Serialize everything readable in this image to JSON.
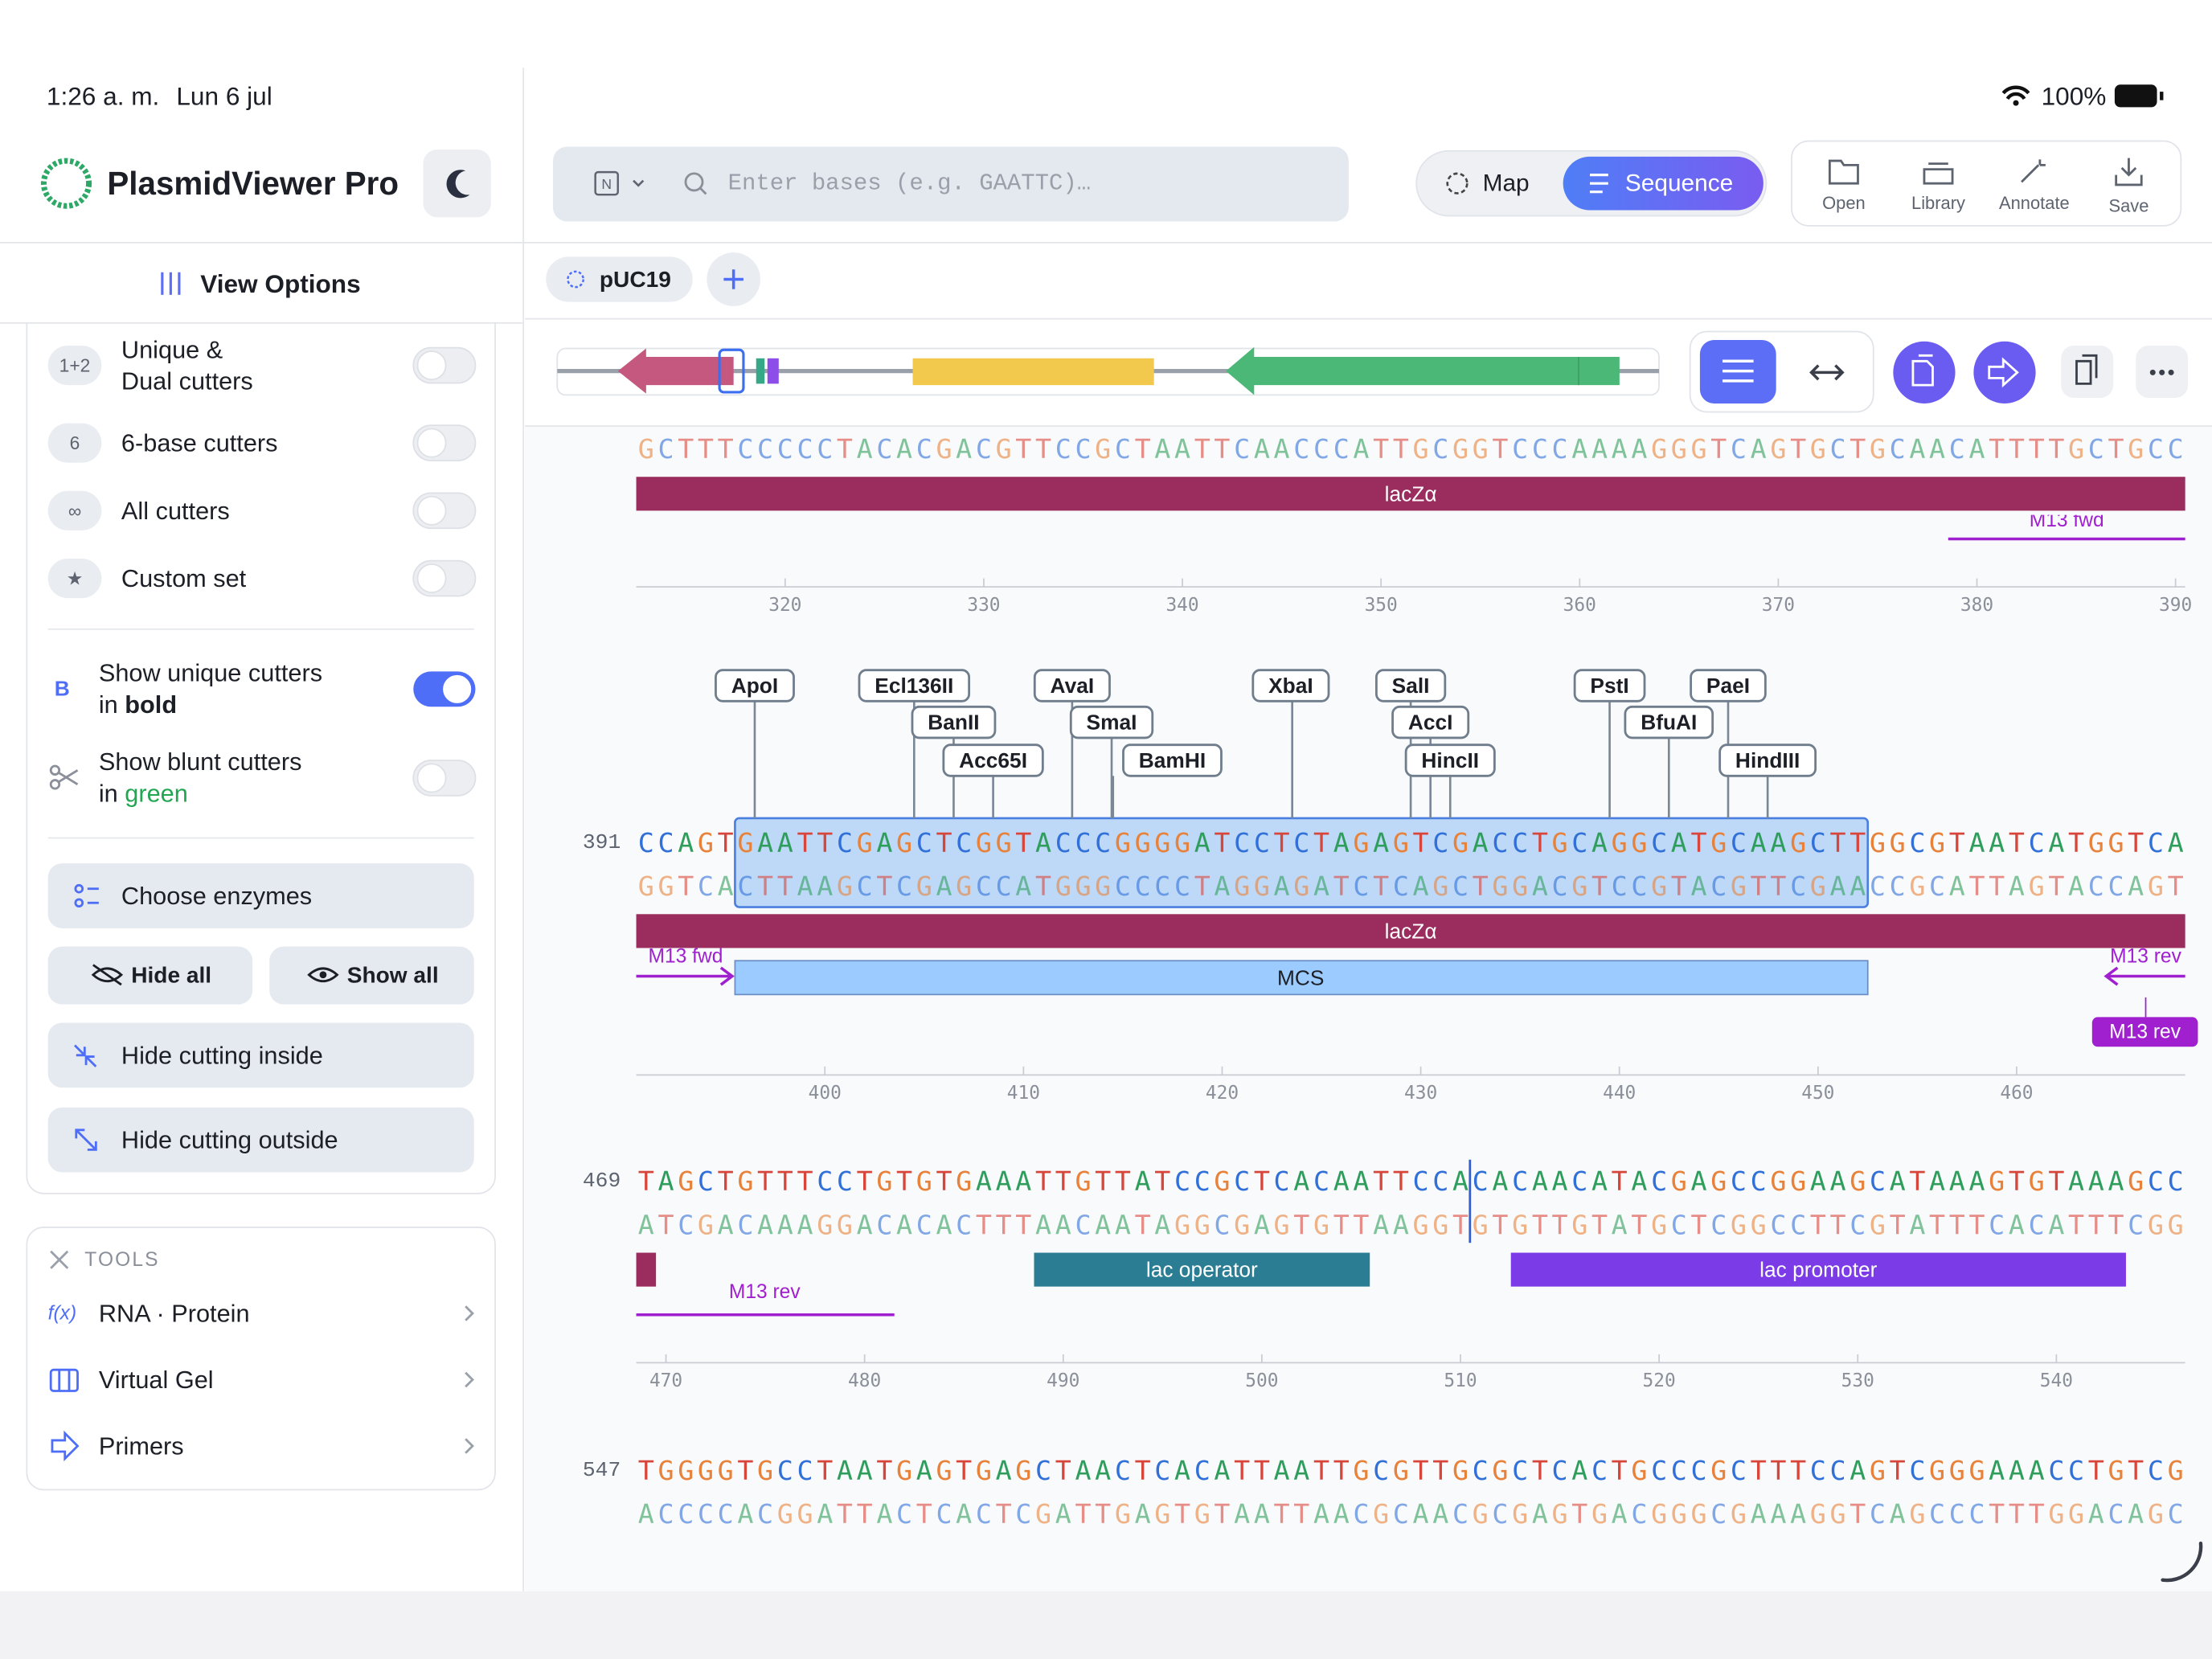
{
  "status": {
    "time": "1:26 a. m.",
    "date": "Lun 6 jul",
    "battery": "100%"
  },
  "sidebar": {
    "app_name": "PlasmidViewer Pro",
    "view_options": "View Options",
    "filters": [
      {
        "badge": "1+2",
        "label": [
          "Unique &",
          "Dual cutters"
        ]
      },
      {
        "badge": "6",
        "label": [
          "6-base cutters"
        ]
      },
      {
        "badge": "∞",
        "label": [
          "All cutters"
        ]
      },
      {
        "badge": "★",
        "label": [
          "Custom set"
        ]
      }
    ],
    "bold_option": {
      "badge": "B",
      "line1": "Show unique cutters",
      "line2": "in",
      "emphasis": "bold"
    },
    "blunt_option": {
      "line1": "Show blunt cutters",
      "line2": "in",
      "emphasis": "green"
    },
    "buttons": {
      "choose": "Choose enzymes",
      "hide_all": "Hide all",
      "show_all": "Show all",
      "hide_inside": "Hide cutting inside",
      "hide_outside": "Hide cutting outside"
    },
    "tools": {
      "header": "TOOLS",
      "items": [
        {
          "icon": "f(x)",
          "label": "RNA · Protein"
        },
        {
          "label": "Virtual Gel"
        },
        {
          "label": "Primers"
        }
      ]
    }
  },
  "toolbar": {
    "search_mode": "N",
    "search_placeholder": "Enter bases (e.g. GAATTC)…",
    "views": [
      "Map",
      "Sequence"
    ],
    "actions": [
      "Open",
      "Library",
      "Annotate",
      "Save"
    ],
    "tab": "pUC19"
  },
  "sequence_view": {
    "rows": [
      {
        "strand": "GCTTTCCCCCTACACGACGTTCCGCTAATTCAACCCATTGCGGTCCCAAAAGGGTCAGTGCTGCAACATTTTGCTGCC",
        "ticks": [
          320,
          330,
          340,
          350,
          360,
          370,
          380,
          390
        ]
      },
      {
        "number": 391,
        "top": "CCAGTGAATTCGAGCTCGGTACCCGGGGATCCTCTAGAGTCGACCTGCAGGCATGCAAGCTTGGCGTAATCATGGTCA",
        "bottom": "GGTCACTTAAGCTCGAGCCATGGGCCCCTAGGAGATCTCAGCTGGACGTCCGTACGTTCGAACCGCATTAGTACCAGT",
        "ticks": [
          400,
          410,
          420,
          430,
          440,
          450,
          460
        ]
      },
      {
        "number": 469,
        "top": "TAGCTGTTTCCTGTGTGAAATTGTTATCCGCTCACAATTCCACACAACATACGAGCCGGAAGCATAAAGTGTAAAGCC",
        "bottom": "ATCGACAAAGGACACACTTTAACAATAGGCGAGTGTTAAGGTGTGTTGTATGCTCGGCCTTCGTATTTCACATTTCGG",
        "ticks": [
          470,
          480,
          490,
          500,
          510,
          520,
          530,
          540
        ]
      },
      {
        "number": 547,
        "top": "TGGGGTGCCTAATGAGTGAGCTAACTCACATTAATTGCGTTGCGCTCACTGCCCGCTTTCCAGTCGGGAAACCTGTCG",
        "bottom": "ACCCCACGGATTACTCACTCGATTGAGTGTAATTAACGCAACGCGAGTGACGGGCGAAAGGTCAGCCCTTTGGACAGC"
      }
    ],
    "features": {
      "lacZ": "lacZα",
      "m13_fwd": "M13 fwd",
      "mcs": "MCS",
      "m13_rev": "M13 rev",
      "lac_operator": "lac operator",
      "lac_promoter": "lac promoter"
    },
    "enzymes": [
      "ApoI",
      "Ecl136II",
      "BanII",
      "Acc65I",
      "AvaI",
      "SmaI",
      "BamHI",
      "XbaI",
      "SalI",
      "AccI",
      "HincII",
      "PstI",
      "BfuAI",
      "PaeI",
      "HindIII"
    ]
  }
}
